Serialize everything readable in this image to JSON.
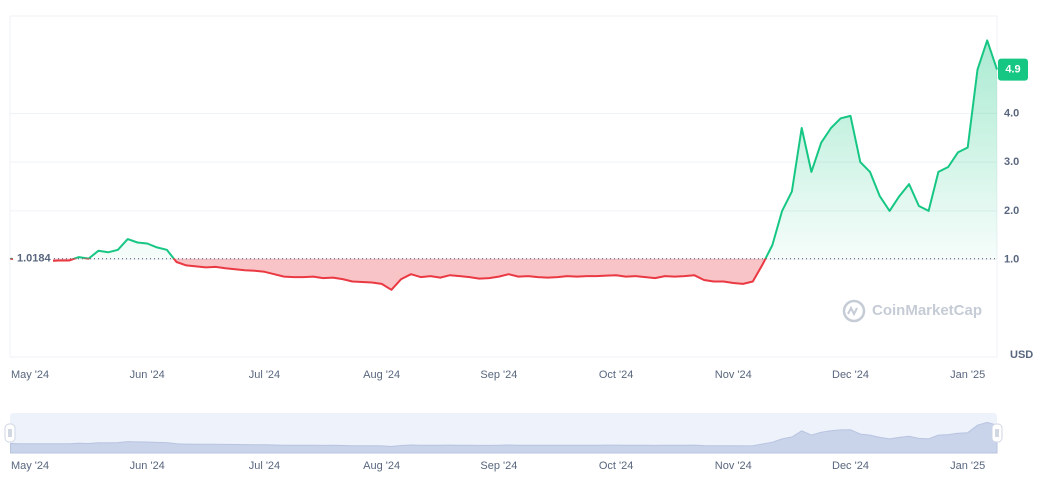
{
  "chart_data": {
    "type": "line",
    "categories": [
      null,
      null,
      "May '24",
      null,
      null,
      null,
      null,
      null,
      null,
      null,
      null,
      null,
      null,
      null,
      "Jun '24",
      null,
      null,
      null,
      null,
      null,
      null,
      null,
      null,
      null,
      null,
      null,
      "Jul '24",
      null,
      null,
      null,
      null,
      null,
      null,
      null,
      null,
      null,
      null,
      null,
      "Aug '24",
      null,
      null,
      null,
      null,
      null,
      null,
      null,
      null,
      null,
      null,
      null,
      "Sep '24",
      null,
      null,
      null,
      null,
      null,
      null,
      null,
      null,
      null,
      null,
      null,
      "Oct '24",
      null,
      null,
      null,
      null,
      null,
      null,
      null,
      null,
      null,
      null,
      null,
      "Nov '24",
      null,
      null,
      null,
      null,
      null,
      null,
      null,
      null,
      null,
      null,
      null,
      "Dec '24",
      null,
      null,
      null,
      null,
      null,
      null,
      null,
      null,
      null,
      null,
      null,
      "Jan '25",
      null,
      null,
      null
    ],
    "values": [
      1.02,
      0.98,
      0.98,
      0.97,
      0.97,
      0.98,
      0.98,
      1.05,
      1.02,
      1.18,
      1.15,
      1.2,
      1.42,
      1.35,
      1.33,
      1.25,
      1.2,
      0.95,
      0.88,
      0.86,
      0.84,
      0.85,
      0.82,
      0.8,
      0.78,
      0.77,
      0.75,
      0.7,
      0.65,
      0.64,
      0.64,
      0.65,
      0.62,
      0.63,
      0.6,
      0.55,
      0.54,
      0.53,
      0.5,
      0.38,
      0.6,
      0.7,
      0.64,
      0.66,
      0.63,
      0.68,
      0.66,
      0.64,
      0.61,
      0.62,
      0.65,
      0.7,
      0.65,
      0.66,
      0.64,
      0.63,
      0.64,
      0.66,
      0.65,
      0.66,
      0.66,
      0.67,
      0.68,
      0.65,
      0.66,
      0.64,
      0.62,
      0.66,
      0.65,
      0.66,
      0.68,
      0.58,
      0.55,
      0.55,
      0.52,
      0.5,
      0.55,
      0.9,
      1.3,
      2.0,
      2.4,
      3.7,
      2.8,
      3.4,
      3.7,
      3.9,
      3.95,
      3.0,
      2.8,
      2.3,
      2.0,
      2.3,
      2.55,
      2.1,
      2.0,
      2.8,
      2.9,
      3.2,
      3.3,
      4.9,
      5.5,
      4.9
    ],
    "baseline": 1.0184,
    "current_value": 4.9,
    "y_axis_unit": "USD",
    "up_color": "#16c784",
    "down_color": "#ea3943",
    "ylim": [
      -1,
      6
    ],
    "yticks": [
      {
        "value": 1,
        "label": "1.0"
      },
      {
        "value": 2,
        "label": "2.0"
      },
      {
        "value": 3,
        "label": "3.0"
      },
      {
        "value": 4,
        "label": "4.0"
      }
    ],
    "grid": true,
    "watermark": "CoinMarketCap"
  }
}
